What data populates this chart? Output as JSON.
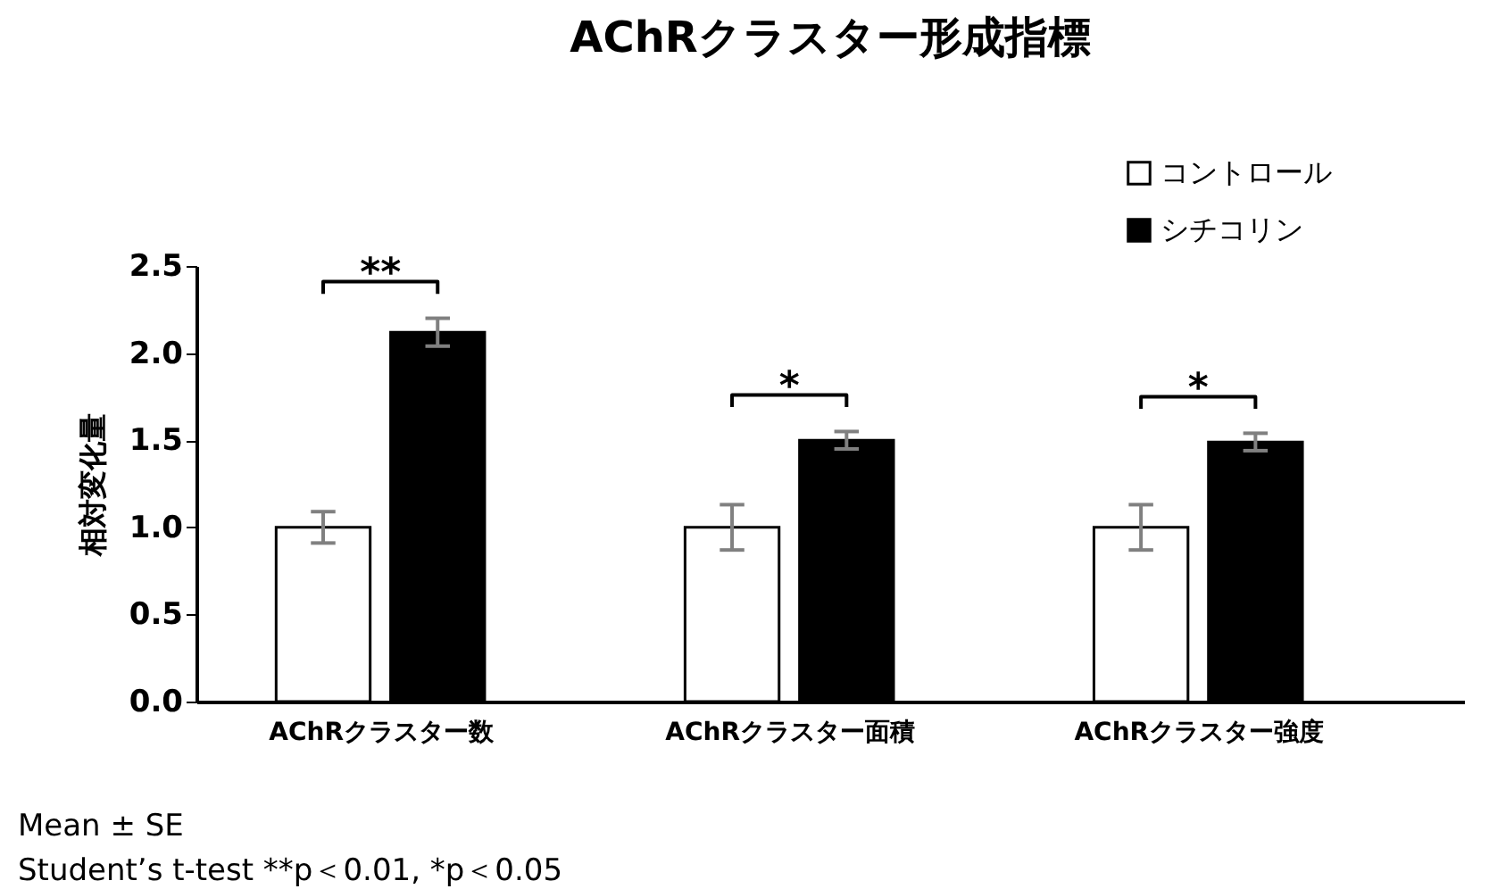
{
  "chart_data": {
    "type": "bar",
    "title": "AChRクラスター形成指標",
    "ylabel": "相対変化量",
    "categories": [
      "AChRクラスター数",
      "AChRクラスター面積",
      "AChRクラスター強度"
    ],
    "series": [
      {
        "name": "コントロール",
        "color": "#ffffff",
        "values": [
          1.0,
          1.0,
          1.0
        ],
        "errors": [
          0.09,
          0.13,
          0.13
        ]
      },
      {
        "name": "シチコリン",
        "color": "#000000",
        "values": [
          2.12,
          1.5,
          1.49
        ],
        "errors": [
          0.08,
          0.05,
          0.05
        ]
      }
    ],
    "ylim": [
      0,
      2.5
    ],
    "yticks": [
      {
        "value": 0,
        "label": "0.0"
      },
      {
        "value": 0.5,
        "label": "0.5"
      },
      {
        "value": 1,
        "label": "1.0"
      },
      {
        "value": 1.5,
        "label": "1.5"
      },
      {
        "value": 2,
        "label": "2.0"
      },
      {
        "value": 2.5,
        "label": "2.5"
      }
    ],
    "annotations": [
      "**",
      "*",
      "*",
      "Mean ± SE",
      "Student’s t-test  **p＜0.01, *p＜0.05"
    ],
    "legend": "top right",
    "grid": false
  }
}
